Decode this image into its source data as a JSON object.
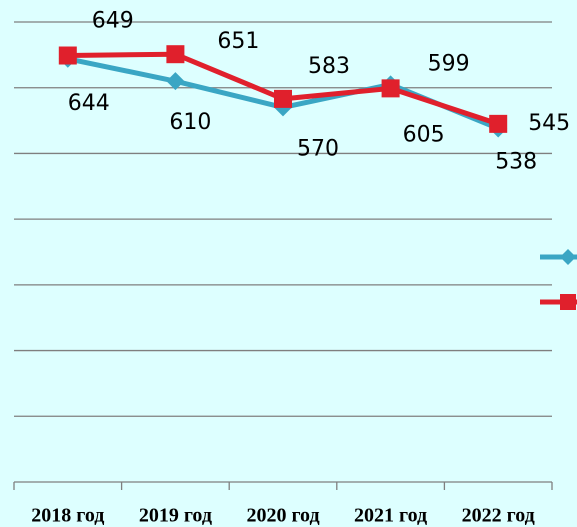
{
  "chart_data": {
    "type": "line",
    "categories": [
      "2018 год",
      "2019 год",
      "2020 год",
      "2021 год",
      "2022 год"
    ],
    "series": [
      {
        "color": "#3aa6c4",
        "marker": "diamond",
        "values": [
          644,
          610,
          570,
          605,
          538
        ]
      },
      {
        "color": "#e0202c",
        "marker": "square",
        "values": [
          649,
          651,
          583,
          599,
          545
        ]
      }
    ],
    "ylim": [
      0,
      700
    ],
    "yticks": [
      0,
      100,
      200,
      300,
      400,
      500,
      600,
      700
    ],
    "grid": true
  }
}
